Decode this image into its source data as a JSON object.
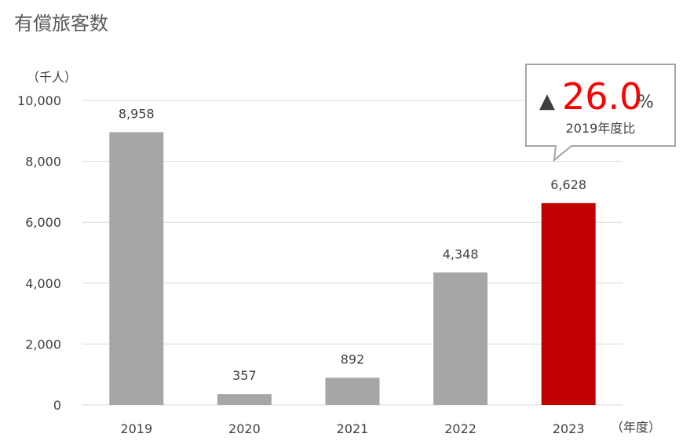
{
  "chart_data": {
    "type": "bar",
    "title": "有償旅客数",
    "y_unit_label": "（千人）",
    "x_unit_label": "（年度）",
    "categories": [
      "2019",
      "2020",
      "2021",
      "2022",
      "2023"
    ],
    "values": [
      8958,
      357,
      892,
      4348,
      6628
    ],
    "value_labels": [
      "8,958",
      "357",
      "892",
      "4,348",
      "6,628"
    ],
    "yticks": [
      0,
      2000,
      4000,
      6000,
      8000,
      10000
    ],
    "ytick_labels": [
      "0",
      "2,000",
      "4,000",
      "6,000",
      "8,000",
      "10,000"
    ],
    "ylim": [
      0,
      10000
    ],
    "grid": true,
    "highlight_index": 4,
    "colors": {
      "bar": "#a6a6a6",
      "highlight": "#c00000",
      "grid": "#d9d9d9",
      "callout_value": "#ff0000"
    },
    "callout": {
      "prefix": "▲",
      "value": "26.0",
      "suffix": "%",
      "caption": "2019年度比"
    }
  }
}
